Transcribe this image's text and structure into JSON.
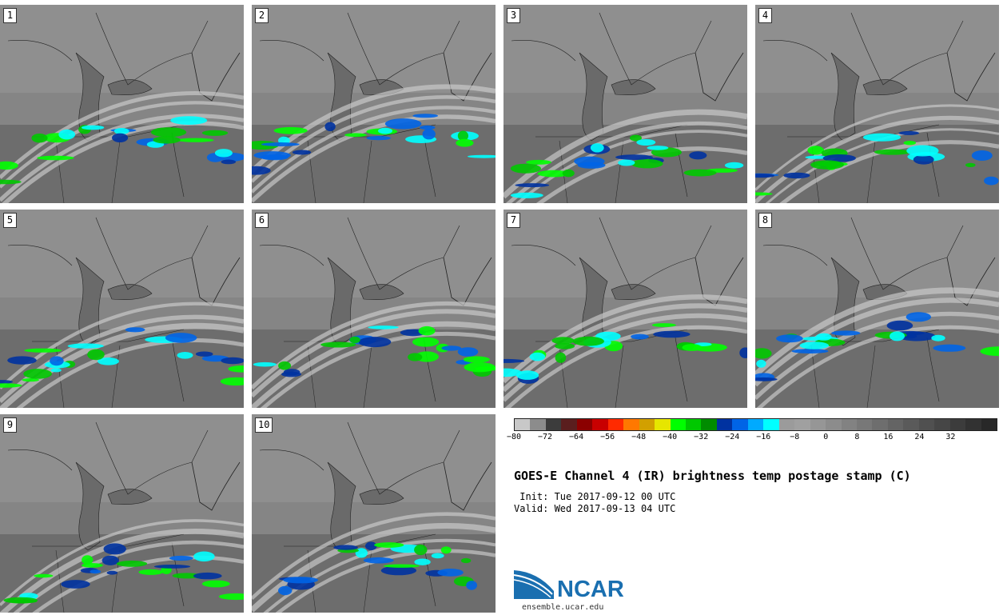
{
  "panels": [
    {
      "label": "1"
    },
    {
      "label": "2"
    },
    {
      "label": "3"
    },
    {
      "label": "4"
    },
    {
      "label": "5"
    },
    {
      "label": "6"
    },
    {
      "label": "7"
    },
    {
      "label": "8"
    },
    {
      "label": "9"
    },
    {
      "label": "10"
    }
  ],
  "colorbar": {
    "colors": [
      "#c8c8c8",
      "#8c8c8c",
      "#3c3c3c",
      "#5a1e1e",
      "#8b0000",
      "#c80000",
      "#ff2a00",
      "#ff7800",
      "#d2a000",
      "#e6e600",
      "#00ff00",
      "#00c800",
      "#008c00",
      "#0032a0",
      "#0064e6",
      "#00aaff",
      "#00ffff",
      "#9b9b9b",
      "#a0a0a0",
      "#969696",
      "#8c8c8c",
      "#828282",
      "#787878",
      "#6e6e6e",
      "#646464",
      "#5a5a5a",
      "#505050",
      "#464646",
      "#3c3c3c",
      "#323232",
      "#282828"
    ],
    "ticks": [
      "−80",
      "−72",
      "−64",
      "−56",
      "−48",
      "−40",
      "−32",
      "−24",
      "−16",
      "−8",
      "0",
      "8",
      "16",
      "24",
      "32"
    ]
  },
  "title": "GOES-E Channel 4 (IR) brightness temp postage stamp (C)",
  "init": " Init: Tue 2017-09-12 00 UTC",
  "valid": "Valid: Wed 2017-09-13 04 UTC",
  "logo_text": "NCAR",
  "site": "ensemble.ucar.edu"
}
